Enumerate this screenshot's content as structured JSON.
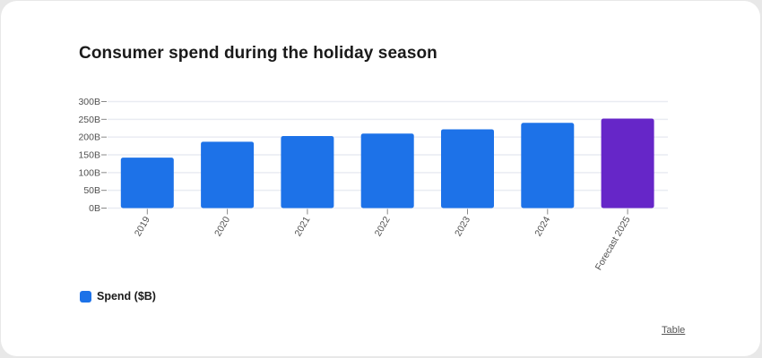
{
  "card": {
    "title": "Consumer spend during the holiday season",
    "table_link": "Table"
  },
  "colors": {
    "bar": "#1d72e8",
    "forecast_bar": "#6626c8",
    "grid": "#e9ecf2",
    "axis_text": "#505050"
  },
  "legend": {
    "items": [
      {
        "label": "Spend ($B)",
        "color": "#1d72e8"
      }
    ]
  },
  "chart_data": {
    "type": "bar",
    "title": "Consumer spend during the holiday season",
    "xlabel": "",
    "ylabel": "",
    "categories": [
      "2019",
      "2020",
      "2021",
      "2022",
      "2023",
      "2024",
      "Forecast 2025"
    ],
    "series": [
      {
        "name": "Spend ($B)",
        "values": [
          142,
          187,
          203,
          210,
          222,
          240,
          252
        ]
      }
    ],
    "highlight": {
      "category": "Forecast 2025",
      "color": "#6626c8"
    },
    "ylim": [
      0,
      300
    ],
    "yticks": [
      0,
      50,
      100,
      150,
      200,
      250,
      300
    ],
    "ytick_labels": [
      "0B",
      "50B",
      "100B",
      "150B",
      "200B",
      "250B",
      "300B"
    ],
    "grid": true,
    "legend_position": "bottom-left"
  }
}
